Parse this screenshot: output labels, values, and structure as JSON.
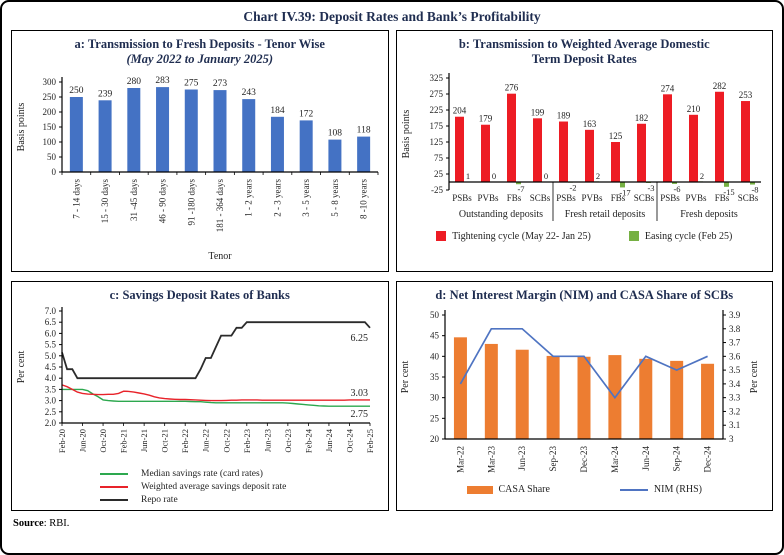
{
  "title": "Chart IV.39: Deposit Rates and Bank’s Profitability",
  "source": {
    "label": "Source",
    "rest": ": RBI."
  },
  "colors": {
    "frame_border": "#000000",
    "title_text": "#1f2d50",
    "axis_text": "#232323"
  },
  "chart_data": [
    {
      "id": "a",
      "type": "bar",
      "title": "a: Transmission to Fresh Deposits - Tenor Wise",
      "subtitle": "(May 2022 to January 2025)",
      "ylabel": "Basis points",
      "xlabel": "Tenor",
      "ylim": [
        0,
        300
      ],
      "ytick_step": 50,
      "bar_color": "#4472C4",
      "categories": [
        "7 - 14 days",
        "15 - 30 days",
        "31 -45 days",
        "46 - 90 days",
        "91 -180 days",
        "181 - 364 days",
        "1 - 2 years",
        "2 - 3 years",
        "3 - 5 years",
        "5 - 8 years",
        "8 -10 years"
      ],
      "values": [
        250,
        239,
        280,
        283,
        275,
        273,
        243,
        184,
        172,
        108,
        118
      ]
    },
    {
      "id": "b",
      "type": "grouped-bar",
      "title_line1": "b: Transmission to Weighted Average Domestic",
      "title_line2": "Term Deposit Rates",
      "ylabel": "Basis points",
      "ylim": [
        -25,
        325
      ],
      "ytick_step": 50,
      "groups": [
        {
          "label": "Outstanding deposits",
          "banks": [
            "PSBs",
            "PVBs",
            "FBs",
            "SCBs"
          ],
          "tightening": [
            204,
            179,
            276,
            199
          ],
          "easing": [
            1,
            0,
            -7,
            0
          ]
        },
        {
          "label": "Fresh retail deposits",
          "banks": [
            "PSBs",
            "PVBs",
            "FBs",
            "SCBs"
          ],
          "tightening": [
            189,
            163,
            125,
            182
          ],
          "easing": [
            -2,
            2,
            -17,
            -3
          ]
        },
        {
          "label": "Fresh deposits",
          "banks": [
            "PSBs",
            "PVBs",
            "FBs",
            "SCBs"
          ],
          "tightening": [
            274,
            210,
            282,
            253
          ],
          "easing": [
            -6,
            2,
            -15,
            -8
          ]
        }
      ],
      "legend": [
        {
          "label": "Tightening cycle (May 22- Jan 25)",
          "color": "#ED1C24"
        },
        {
          "label": "Easing cycle (Feb 25)",
          "color": "#76B043"
        }
      ]
    },
    {
      "id": "c",
      "type": "line",
      "title": "c: Savings Deposit Rates of Banks",
      "ylabel": "Per cent",
      "ylim": [
        2.0,
        7.0
      ],
      "ytick_step": 0.5,
      "x_ticks": [
        "Feb-20",
        "Jun-20",
        "Oct-20",
        "Feb-21",
        "Jun-21",
        "Oct-21",
        "Feb-22",
        "Jun-22",
        "Oct-22",
        "Feb-23",
        "Jun-23",
        "Oct-23",
        "Feb-24",
        "Jun-24",
        "Oct-24",
        "Feb-25"
      ],
      "x_tick_every": 4,
      "series": [
        {
          "name": "Median savings rate (card rates)",
          "color": "#2DA84F",
          "end_label": "2.75",
          "values": [
            3.5,
            3.5,
            3.5,
            3.5,
            3.5,
            3.44,
            3.3,
            3.18,
            3.03,
            3.0,
            2.98,
            2.97,
            2.97,
            2.97,
            2.97,
            2.97,
            2.97,
            2.97,
            2.97,
            2.97,
            2.97,
            2.97,
            2.97,
            2.97,
            2.97,
            2.96,
            2.95,
            2.95,
            2.93,
            2.91,
            2.9,
            2.9,
            2.9,
            2.9,
            2.9,
            2.9,
            2.9,
            2.9,
            2.9,
            2.9,
            2.9,
            2.9,
            2.9,
            2.9,
            2.89,
            2.87,
            2.85,
            2.83,
            2.81,
            2.79,
            2.77,
            2.76,
            2.75,
            2.75,
            2.75,
            2.75,
            2.75,
            2.75,
            2.75,
            2.75,
            2.75
          ]
        },
        {
          "name": "Weighted average savings deposit rate",
          "color": "#E8232A",
          "end_label": "3.03",
          "values": [
            3.7,
            3.62,
            3.5,
            3.38,
            3.32,
            3.29,
            3.28,
            3.27,
            3.27,
            3.28,
            3.28,
            3.32,
            3.42,
            3.41,
            3.38,
            3.34,
            3.3,
            3.24,
            3.17,
            3.12,
            3.09,
            3.07,
            3.06,
            3.05,
            3.05,
            3.04,
            3.03,
            3.02,
            3.01,
            3.0,
            3.0,
            3.0,
            3.01,
            3.02,
            3.02,
            3.03,
            3.03,
            3.03,
            3.03,
            3.02,
            3.02,
            3.02,
            3.02,
            3.02,
            3.02,
            3.02,
            3.02,
            3.02,
            3.02,
            3.02,
            3.02,
            3.02,
            3.02,
            3.02,
            3.02,
            3.02,
            3.03,
            3.03,
            3.03,
            3.03,
            3.03
          ]
        },
        {
          "name": "Repo rate",
          "color": "#2B2B2B",
          "end_label": "6.25",
          "values": [
            5.15,
            4.4,
            4.4,
            4.0,
            4.0,
            4.0,
            4.0,
            4.0,
            4.0,
            4.0,
            4.0,
            4.0,
            4.0,
            4.0,
            4.0,
            4.0,
            4.0,
            4.0,
            4.0,
            4.0,
            4.0,
            4.0,
            4.0,
            4.0,
            4.0,
            4.0,
            4.0,
            4.4,
            4.9,
            4.9,
            5.4,
            5.9,
            5.9,
            5.9,
            6.25,
            6.25,
            6.5,
            6.5,
            6.5,
            6.5,
            6.5,
            6.5,
            6.5,
            6.5,
            6.5,
            6.5,
            6.5,
            6.5,
            6.5,
            6.5,
            6.5,
            6.5,
            6.5,
            6.5,
            6.5,
            6.5,
            6.5,
            6.5,
            6.5,
            6.5,
            6.25
          ]
        }
      ]
    },
    {
      "id": "d",
      "type": "combo",
      "title": "d: Net Interest Margin (NIM) and CASA Share of SCBs",
      "ylabel_left": "Per cent",
      "ylabel_right": "Per cent",
      "ylim_left": [
        20,
        50
      ],
      "ytick_step_left": 5,
      "ylim_right": [
        3,
        3.9
      ],
      "ytick_step_right": 0.1,
      "categories": [
        "Mar-22",
        "Mar-23",
        "Jun-23",
        "Sep-23",
        "Dec-23",
        "Mar-24",
        "Jun-24",
        "Sep-24",
        "Dec-24"
      ],
      "bars": {
        "name": "CASA Share",
        "color": "#ED7D31",
        "values": [
          44.6,
          43.0,
          41.6,
          40.1,
          39.9,
          40.3,
          39.4,
          38.9,
          38.2
        ]
      },
      "line": {
        "name": "NIM (RHS)",
        "color": "#4F74C2",
        "values": [
          3.4,
          3.8,
          3.8,
          3.6,
          3.6,
          3.3,
          3.6,
          3.5,
          3.6
        ]
      }
    }
  ]
}
